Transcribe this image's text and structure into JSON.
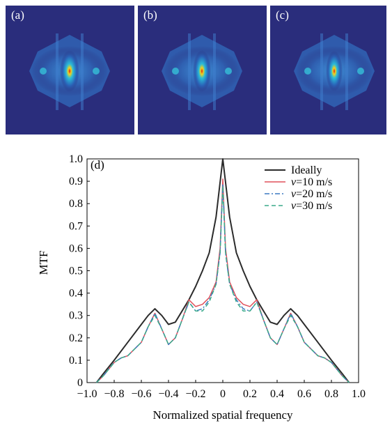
{
  "panels": [
    {
      "label": "(a)"
    },
    {
      "label": "(b)"
    },
    {
      "label": "(c)"
    }
  ],
  "colors": {
    "panel_bg": "#2a2d7c",
    "ideal": "#2b2b2b",
    "v10": "#e0505a",
    "v20": "#3a78c0",
    "v30": "#3aaa8a"
  },
  "chart_data": {
    "type": "line",
    "panel_label": "(d)",
    "xlabel": "Normalized spatial frequency",
    "ylabel": "MTF",
    "xlim": [
      -1.0,
      1.0
    ],
    "ylim": [
      0,
      1.0
    ],
    "x_ticks": [
      "−1.0",
      "−0.8",
      "−0.6",
      "−0.4",
      "−0.2",
      "0",
      "0.2",
      "0.4",
      "0.6",
      "0.8",
      "1.0"
    ],
    "y_ticks": [
      "0",
      "0.1",
      "0.2",
      "0.3",
      "0.4",
      "0.5",
      "0.6",
      "0.7",
      "0.8",
      "0.9",
      "1.0"
    ],
    "grid": false,
    "legend_position": "top-right",
    "series": [
      {
        "name": "Ideally",
        "style": "solid",
        "color": "#2b2b2b",
        "x": [
          -0.93,
          -0.88,
          -0.8,
          -0.7,
          -0.6,
          -0.55,
          -0.5,
          -0.45,
          -0.4,
          -0.35,
          -0.3,
          -0.25,
          -0.2,
          -0.15,
          -0.1,
          -0.05,
          0,
          0.05,
          0.1,
          0.15,
          0.2,
          0.25,
          0.3,
          0.35,
          0.4,
          0.45,
          0.5,
          0.55,
          0.6,
          0.7,
          0.8,
          0.88,
          0.93
        ],
        "y": [
          0,
          0.04,
          0.1,
          0.18,
          0.26,
          0.3,
          0.33,
          0.3,
          0.26,
          0.27,
          0.32,
          0.37,
          0.43,
          0.5,
          0.58,
          0.74,
          1.0,
          0.74,
          0.58,
          0.5,
          0.43,
          0.37,
          0.32,
          0.27,
          0.26,
          0.3,
          0.33,
          0.3,
          0.26,
          0.18,
          0.1,
          0.04,
          0
        ]
      },
      {
        "name": "v=10 m/s",
        "style": "solid",
        "color": "#e0505a",
        "x": [
          -0.93,
          -0.88,
          -0.8,
          -0.75,
          -0.7,
          -0.6,
          -0.55,
          -0.5,
          -0.45,
          -0.4,
          -0.35,
          -0.3,
          -0.25,
          -0.2,
          -0.15,
          -0.1,
          -0.05,
          -0.02,
          0,
          0.02,
          0.05,
          0.1,
          0.15,
          0.2,
          0.25,
          0.3,
          0.35,
          0.4,
          0.45,
          0.5,
          0.55,
          0.6,
          0.7,
          0.75,
          0.8,
          0.88,
          0.93
        ],
        "y": [
          0,
          0.03,
          0.09,
          0.11,
          0.12,
          0.18,
          0.25,
          0.31,
          0.24,
          0.17,
          0.2,
          0.28,
          0.37,
          0.34,
          0.35,
          0.38,
          0.45,
          0.6,
          0.91,
          0.6,
          0.45,
          0.38,
          0.35,
          0.34,
          0.37,
          0.28,
          0.2,
          0.17,
          0.24,
          0.31,
          0.25,
          0.18,
          0.12,
          0.11,
          0.09,
          0.03,
          0
        ]
      },
      {
        "name": "v=20 m/s",
        "style": "dashdot",
        "color": "#3a78c0",
        "x": [
          -0.93,
          -0.88,
          -0.8,
          -0.75,
          -0.7,
          -0.6,
          -0.55,
          -0.5,
          -0.45,
          -0.4,
          -0.35,
          -0.3,
          -0.25,
          -0.2,
          -0.15,
          -0.1,
          -0.05,
          -0.02,
          0,
          0.02,
          0.05,
          0.1,
          0.15,
          0.2,
          0.25,
          0.3,
          0.35,
          0.4,
          0.45,
          0.5,
          0.55,
          0.6,
          0.7,
          0.75,
          0.8,
          0.88,
          0.93
        ],
        "y": [
          0,
          0.03,
          0.09,
          0.11,
          0.12,
          0.18,
          0.25,
          0.31,
          0.24,
          0.17,
          0.2,
          0.28,
          0.36,
          0.32,
          0.33,
          0.37,
          0.44,
          0.58,
          0.89,
          0.58,
          0.44,
          0.37,
          0.33,
          0.32,
          0.36,
          0.28,
          0.2,
          0.17,
          0.24,
          0.31,
          0.25,
          0.18,
          0.12,
          0.11,
          0.09,
          0.03,
          0
        ]
      },
      {
        "name": "v=30 m/s",
        "style": "dashed",
        "color": "#3aaa8a",
        "x": [
          -0.93,
          -0.88,
          -0.8,
          -0.75,
          -0.7,
          -0.6,
          -0.55,
          -0.5,
          -0.45,
          -0.4,
          -0.35,
          -0.3,
          -0.25,
          -0.2,
          -0.15,
          -0.1,
          -0.05,
          -0.02,
          0,
          0.02,
          0.05,
          0.1,
          0.15,
          0.2,
          0.25,
          0.3,
          0.35,
          0.4,
          0.45,
          0.5,
          0.55,
          0.6,
          0.7,
          0.75,
          0.8,
          0.88,
          0.93
        ],
        "y": [
          0,
          0.03,
          0.09,
          0.11,
          0.12,
          0.18,
          0.25,
          0.3,
          0.24,
          0.17,
          0.2,
          0.28,
          0.36,
          0.32,
          0.32,
          0.36,
          0.44,
          0.58,
          0.88,
          0.58,
          0.44,
          0.36,
          0.32,
          0.32,
          0.36,
          0.28,
          0.2,
          0.17,
          0.24,
          0.3,
          0.25,
          0.18,
          0.12,
          0.11,
          0.09,
          0.03,
          0
        ]
      }
    ]
  }
}
